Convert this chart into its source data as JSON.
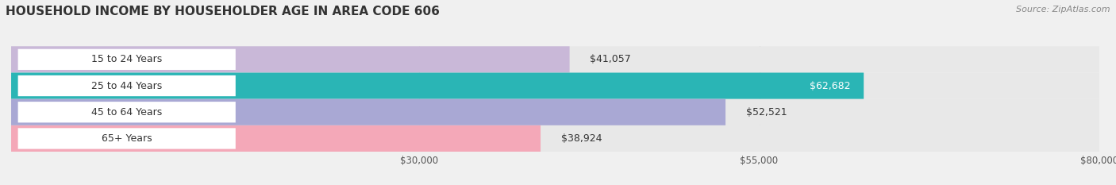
{
  "title": "HOUSEHOLD INCOME BY HOUSEHOLDER AGE IN AREA CODE 606",
  "source": "Source: ZipAtlas.com",
  "categories": [
    "15 to 24 Years",
    "25 to 44 Years",
    "45 to 64 Years",
    "65+ Years"
  ],
  "values": [
    41057,
    62682,
    52521,
    38924
  ],
  "bar_colors": [
    "#c9b8d8",
    "#2ab5b5",
    "#a9a8d4",
    "#f4a8b8"
  ],
  "label_colors": [
    "#555555",
    "#ffffff",
    "#555555",
    "#555555"
  ],
  "x_min": 0,
  "x_max": 80000,
  "x_ticks": [
    30000,
    55000,
    80000
  ],
  "x_tick_labels": [
    "$30,000",
    "$55,000",
    "$80,000"
  ],
  "bar_height": 0.55,
  "background_color": "#f0f0f0",
  "bar_background_color": "#e8e8e8",
  "title_fontsize": 11,
  "source_fontsize": 8,
  "label_fontsize": 9,
  "ylabel_fontsize": 9
}
